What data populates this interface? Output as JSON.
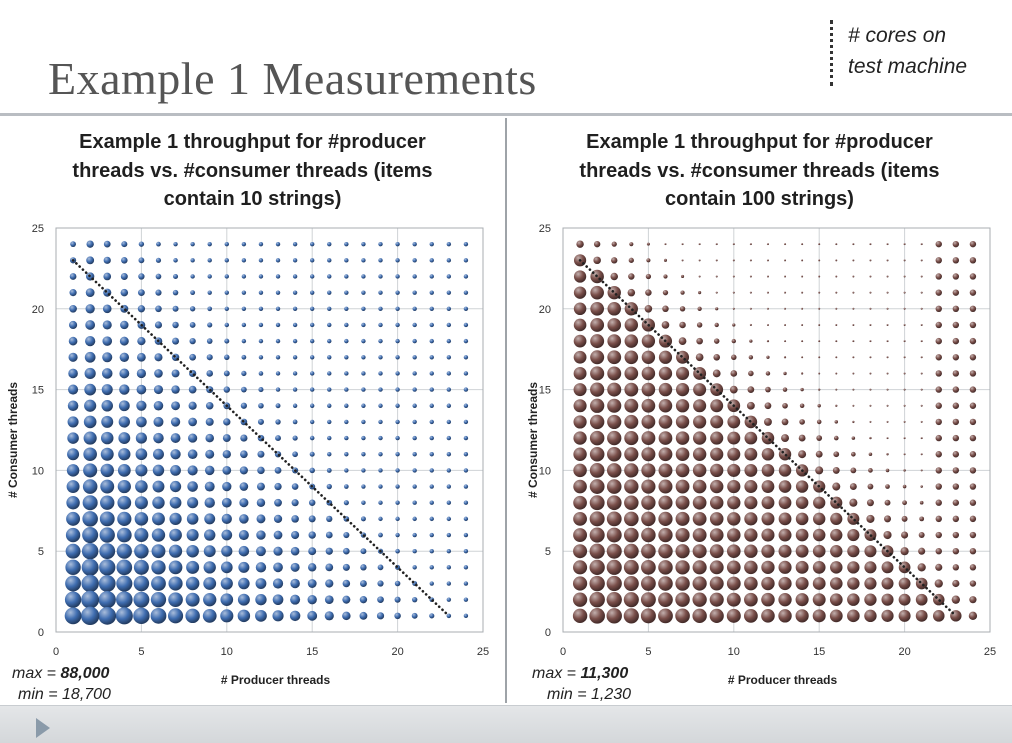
{
  "slide": {
    "title": "Example 1 Measurements"
  },
  "legend": {
    "line1": "# cores on",
    "line2": "test machine"
  },
  "chart_data": [
    {
      "type": "scatter",
      "title_lines": [
        "Example 1 throughput for #producer",
        "threads vs. #consumer threads (items",
        "contain 10 strings)"
      ],
      "xlabel": "# Producer threads",
      "ylabel": "# Consumer threads",
      "xlim": [
        0,
        25
      ],
      "ylim": [
        0,
        25
      ],
      "x_ticks": [
        "0",
        "5",
        "10",
        "15",
        "20",
        "25"
      ],
      "y_ticks": [
        "0",
        "5",
        "10",
        "15",
        "20",
        "25"
      ],
      "grid": true,
      "marker": "bubble",
      "series_color": "#3f6db0",
      "x": [
        1,
        2,
        3,
        4,
        5,
        6,
        7,
        8,
        9,
        10,
        11,
        12,
        13,
        14,
        15,
        16,
        17,
        18,
        19,
        20,
        21,
        22,
        23,
        24
      ],
      "y": [
        1,
        2,
        3,
        4,
        5,
        6,
        7,
        8,
        9,
        10,
        11,
        12,
        13,
        14,
        15,
        16,
        17,
        18,
        19,
        20,
        21,
        22,
        23,
        24
      ],
      "size_note": "bubble area ~ throughput; largest at (2,1), decreasing with more producer and consumer threads",
      "reference_line": {
        "x": [
          1,
          23
        ],
        "y": [
          23,
          1
        ],
        "style": "dotted",
        "color": "#222222"
      },
      "max_label": "max = ",
      "max_value": "88,000",
      "min_label": "min = 18,700"
    },
    {
      "type": "scatter",
      "title_lines": [
        "Example 1 throughput for #producer",
        "threads vs. #consumer threads (items",
        "contain 100 strings)"
      ],
      "xlabel": "# Producer threads",
      "ylabel": "# Consumer threads",
      "xlim": [
        0,
        25
      ],
      "ylim": [
        0,
        25
      ],
      "x_ticks": [
        "0",
        "5",
        "10",
        "15",
        "20",
        "25"
      ],
      "y_ticks": [
        "0",
        "5",
        "10",
        "15",
        "20",
        "25"
      ],
      "grid": true,
      "marker": "bubble",
      "series_color": "#7a4f4a",
      "x": [
        1,
        2,
        3,
        4,
        5,
        6,
        7,
        8,
        9,
        10,
        11,
        12,
        13,
        14,
        15,
        16,
        17,
        18,
        19,
        20,
        21,
        22,
        23,
        24
      ],
      "y": [
        1,
        2,
        3,
        4,
        5,
        6,
        7,
        8,
        9,
        10,
        11,
        12,
        13,
        14,
        15,
        16,
        17,
        18,
        19,
        20,
        21,
        22,
        23,
        24
      ],
      "size_note": "bubble area ~ throughput; large where producers + consumers <= 24, tiny above the diagonal",
      "reference_line": {
        "x": [
          1,
          23
        ],
        "y": [
          23,
          1
        ],
        "style": "dotted",
        "color": "#222222"
      },
      "max_label": "max = ",
      "max_value": "11,300",
      "min_label": "min = 1,230"
    }
  ]
}
